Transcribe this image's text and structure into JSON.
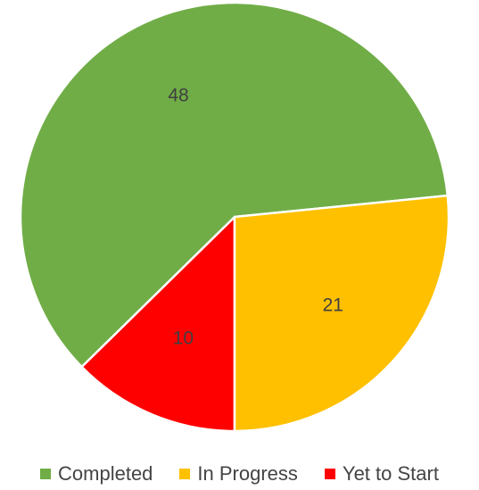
{
  "chart_data": {
    "type": "pie",
    "title": "",
    "legend_position": "bottom",
    "slices": [
      {
        "label": "Completed",
        "value": 48,
        "color": "#70AD47"
      },
      {
        "label": "In Progress",
        "value": 21,
        "color": "#FFC000"
      },
      {
        "label": "Yet to Start",
        "value": 10,
        "color": "#FF0000"
      }
    ]
  }
}
